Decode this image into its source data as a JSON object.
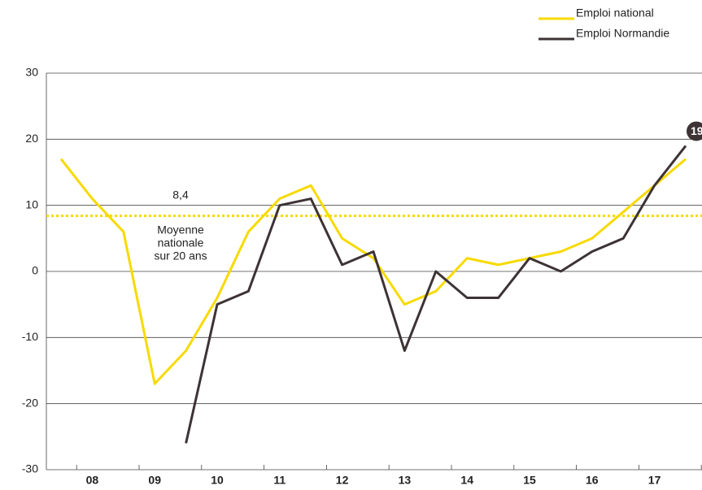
{
  "chart_data": {
    "type": "line",
    "categories": [
      null,
      "08",
      null,
      "09",
      null,
      "10",
      null,
      "11",
      null,
      "12",
      null,
      "13",
      null,
      "14",
      null,
      "15",
      null,
      "16",
      null,
      "17",
      null
    ],
    "series": [
      {
        "name": "Emploi national",
        "color": "#f7da00",
        "values": [
          17,
          11,
          6,
          -17,
          -12,
          -4,
          6,
          11,
          13,
          5,
          2,
          -5,
          -3,
          2,
          1,
          2,
          3,
          5,
          9,
          13,
          17
        ]
      },
      {
        "name": "Emploi Normandie",
        "color": "#3d3335",
        "values": [
          null,
          null,
          null,
          null,
          -26,
          -5,
          -3,
          10,
          11,
          1,
          3,
          -12,
          0,
          -4,
          -4,
          2,
          0,
          3,
          5,
          13,
          19
        ]
      }
    ],
    "ylim": [
      -30,
      30
    ],
    "yticks": [
      -30,
      -20,
      -10,
      0,
      10,
      20,
      30
    ],
    "grid": true,
    "average": {
      "value": 8.4,
      "label": "8,4",
      "text": [
        "Moyenne",
        "nationale",
        "sur 20 ans"
      ]
    }
  }
}
